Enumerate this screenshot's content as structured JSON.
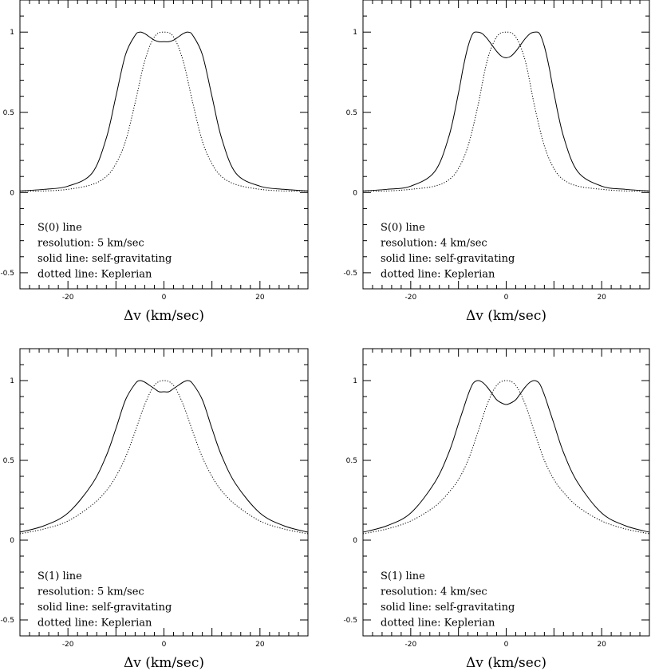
{
  "chart_data": [
    {
      "type": "line",
      "xlabel": "Δv (km/sec)",
      "xlim": [
        -30,
        30
      ],
      "ylim": [
        -0.6,
        1.2
      ],
      "xticks": [
        "-20",
        "0",
        "20"
      ],
      "yticks": [
        "-0.5",
        "0",
        "0.5",
        "1"
      ],
      "annotations": [
        "S(0) line",
        "resolution: 5 km/sec",
        "solid line: self-gravitating",
        "dotted line: Keplerian"
      ],
      "series": [
        {
          "style": "solid",
          "x": [
            -30,
            -25,
            -20,
            -15,
            -12,
            -10,
            -8,
            -6,
            -5,
            -4,
            -3,
            -2,
            -1,
            0,
            1,
            2,
            3,
            4,
            5,
            6,
            8,
            10,
            12,
            15,
            20,
            25,
            30
          ],
          "y": [
            0.01,
            0.02,
            0.04,
            0.12,
            0.34,
            0.6,
            0.86,
            0.98,
            1.0,
            0.99,
            0.97,
            0.95,
            0.94,
            0.94,
            0.94,
            0.95,
            0.97,
            0.99,
            1.0,
            0.98,
            0.86,
            0.6,
            0.34,
            0.12,
            0.04,
            0.02,
            0.01
          ]
        },
        {
          "style": "dotted",
          "x": [
            -30,
            -25,
            -20,
            -15,
            -12,
            -10,
            -8,
            -6,
            -4,
            -2,
            0,
            2,
            4,
            6,
            8,
            10,
            12,
            15,
            20,
            25,
            30
          ],
          "y": [
            0.01,
            0.01,
            0.02,
            0.05,
            0.1,
            0.18,
            0.32,
            0.56,
            0.82,
            0.97,
            1.0,
            0.97,
            0.82,
            0.56,
            0.32,
            0.18,
            0.1,
            0.05,
            0.02,
            0.01,
            0.01
          ]
        }
      ]
    },
    {
      "type": "line",
      "xlabel": "Δv (km/sec)",
      "xlim": [
        -30,
        30
      ],
      "ylim": [
        -0.6,
        1.2
      ],
      "xticks": [
        "-20",
        "0",
        "20"
      ],
      "yticks": [
        "-0.5",
        "0",
        "0.5",
        "1"
      ],
      "annotations": [
        "S(0) line",
        "resolution: 4 km/sec",
        "solid line: self-gravitating",
        "dotted line: Keplerian"
      ],
      "series": [
        {
          "style": "solid",
          "x": [
            -30,
            -25,
            -20,
            -15,
            -12,
            -10,
            -9,
            -8,
            -7,
            -6,
            -5,
            -4,
            -3,
            -2,
            -1,
            0,
            1,
            2,
            3,
            4,
            5,
            6,
            7,
            8,
            9,
            10,
            12,
            15,
            20,
            25,
            30
          ],
          "y": [
            0.01,
            0.02,
            0.04,
            0.13,
            0.35,
            0.62,
            0.78,
            0.91,
            0.99,
            1.0,
            0.99,
            0.96,
            0.92,
            0.88,
            0.85,
            0.84,
            0.85,
            0.88,
            0.92,
            0.96,
            0.99,
            1.0,
            0.99,
            0.91,
            0.78,
            0.62,
            0.35,
            0.13,
            0.04,
            0.02,
            0.01
          ]
        },
        {
          "style": "dotted",
          "x": [
            -30,
            -25,
            -20,
            -15,
            -12,
            -10,
            -8,
            -6,
            -4,
            -2,
            0,
            2,
            4,
            6,
            8,
            10,
            12,
            15,
            20,
            25,
            30
          ],
          "y": [
            0.01,
            0.01,
            0.02,
            0.04,
            0.08,
            0.15,
            0.29,
            0.53,
            0.82,
            0.97,
            1.0,
            0.97,
            0.82,
            0.53,
            0.29,
            0.15,
            0.08,
            0.04,
            0.02,
            0.01,
            0.01
          ]
        }
      ]
    },
    {
      "type": "line",
      "xlabel": "Δv (km/sec)",
      "xlim": [
        -30,
        30
      ],
      "ylim": [
        -0.6,
        1.2
      ],
      "xticks": [
        "-20",
        "0",
        "20"
      ],
      "yticks": [
        "-0.5",
        "0",
        "0.5",
        "1"
      ],
      "annotations": [
        "S(1) line",
        "resolution: 5 km/sec",
        "solid line: self-gravitating",
        "dotted line: Keplerian"
      ],
      "series": [
        {
          "style": "solid",
          "x": [
            -30,
            -25,
            -20,
            -15,
            -12,
            -10,
            -8,
            -6,
            -5,
            -4,
            -3,
            -2,
            -1,
            0,
            1,
            2,
            3,
            4,
            5,
            6,
            8,
            10,
            12,
            15,
            20,
            25,
            30
          ],
          "y": [
            0.05,
            0.09,
            0.17,
            0.35,
            0.53,
            0.7,
            0.88,
            0.98,
            1.0,
            0.99,
            0.97,
            0.95,
            0.93,
            0.93,
            0.93,
            0.95,
            0.97,
            0.99,
            1.0,
            0.98,
            0.88,
            0.7,
            0.53,
            0.35,
            0.17,
            0.09,
            0.05
          ]
        },
        {
          "style": "dotted",
          "x": [
            -30,
            -25,
            -20,
            -15,
            -12,
            -10,
            -8,
            -6,
            -4,
            -2,
            0,
            2,
            4,
            6,
            8,
            10,
            12,
            15,
            20,
            25,
            30
          ],
          "y": [
            0.04,
            0.07,
            0.12,
            0.22,
            0.31,
            0.4,
            0.52,
            0.68,
            0.85,
            0.97,
            1.0,
            0.97,
            0.85,
            0.68,
            0.52,
            0.4,
            0.31,
            0.22,
            0.12,
            0.07,
            0.04
          ]
        }
      ]
    },
    {
      "type": "line",
      "xlabel": "Δv (km/sec)",
      "xlim": [
        -30,
        30
      ],
      "ylim": [
        -0.6,
        1.2
      ],
      "xticks": [
        "-20",
        "0",
        "20"
      ],
      "yticks": [
        "-0.5",
        "0",
        "0.5",
        "1"
      ],
      "annotations": [
        "S(1) line",
        "resolution: 4 km/sec",
        "solid line: self-gravitating",
        "dotted line: Keplerian"
      ],
      "series": [
        {
          "style": "solid",
          "x": [
            -30,
            -25,
            -20,
            -15,
            -12,
            -10,
            -9,
            -8,
            -7,
            -6,
            -5,
            -4,
            -3,
            -2,
            -1,
            0,
            1,
            2,
            3,
            4,
            5,
            6,
            7,
            8,
            9,
            10,
            12,
            15,
            20,
            25,
            30
          ],
          "y": [
            0.05,
            0.09,
            0.17,
            0.36,
            0.55,
            0.73,
            0.82,
            0.91,
            0.98,
            1.0,
            0.99,
            0.96,
            0.92,
            0.88,
            0.86,
            0.85,
            0.86,
            0.88,
            0.92,
            0.96,
            0.99,
            1.0,
            0.98,
            0.91,
            0.82,
            0.73,
            0.55,
            0.36,
            0.17,
            0.09,
            0.05
          ]
        },
        {
          "style": "dotted",
          "x": [
            -30,
            -25,
            -20,
            -15,
            -12,
            -10,
            -8,
            -6,
            -4,
            -2,
            0,
            2,
            4,
            6,
            8,
            10,
            12,
            15,
            20,
            25,
            30
          ],
          "y": [
            0.04,
            0.07,
            0.12,
            0.21,
            0.3,
            0.38,
            0.5,
            0.67,
            0.85,
            0.97,
            1.0,
            0.97,
            0.85,
            0.67,
            0.5,
            0.38,
            0.3,
            0.21,
            0.12,
            0.07,
            0.04
          ]
        }
      ]
    }
  ]
}
